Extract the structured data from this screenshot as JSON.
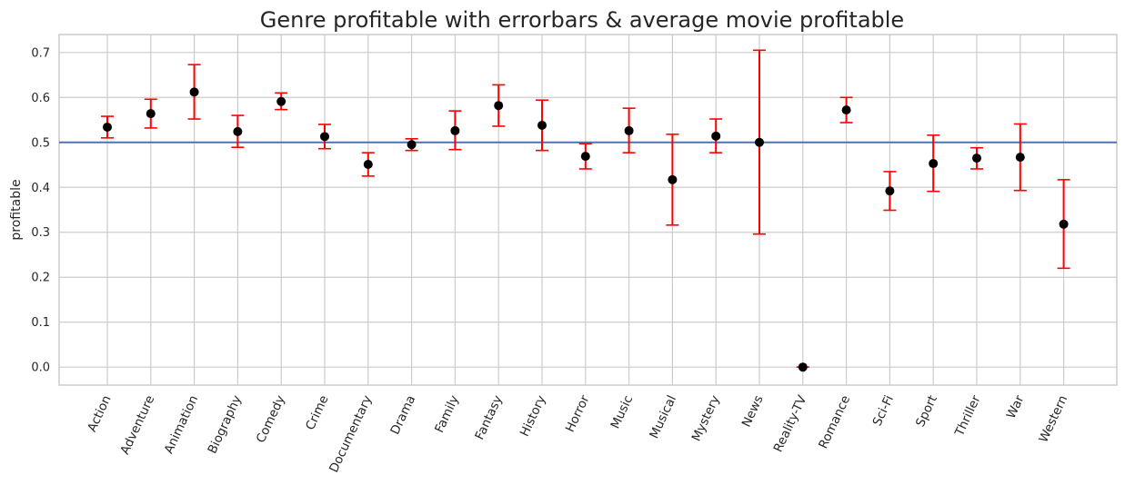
{
  "chart_data": {
    "type": "scatter",
    "title": "Genre profitable with errorbars & average movie profitable",
    "xlabel": "",
    "ylabel": "profitable",
    "ylim": [
      -0.04,
      0.74
    ],
    "yticks": [
      "0.0",
      "0.1",
      "0.2",
      "0.3",
      "0.4",
      "0.5",
      "0.6",
      "0.7"
    ],
    "grid": true,
    "reference_line": {
      "y": 0.5,
      "color": "#4C72B0"
    },
    "colors": {
      "point": "#000000",
      "errorbar": "#ff0000",
      "grid": "#cccccc",
      "axes": "#cccccc"
    },
    "categories": [
      "Action",
      "Adventure",
      "Animation",
      "Biography",
      "Comedy",
      "Crime",
      "Documentary",
      "Drama",
      "Family",
      "Fantasy",
      "History",
      "Horror",
      "Music",
      "Musical",
      "Mystery",
      "News",
      "Reality-TV",
      "Romance",
      "Sci-Fi",
      "Sport",
      "Thriller",
      "War",
      "Western"
    ],
    "values": [
      0.534,
      0.564,
      0.612,
      0.524,
      0.591,
      0.513,
      0.451,
      0.495,
      0.526,
      0.582,
      0.538,
      0.469,
      0.526,
      0.417,
      0.514,
      0.5,
      0.0,
      0.572,
      0.392,
      0.453,
      0.465,
      0.467,
      0.318
    ],
    "err_low": [
      0.51,
      0.532,
      0.552,
      0.489,
      0.573,
      0.486,
      0.425,
      0.482,
      0.484,
      0.536,
      0.482,
      0.441,
      0.477,
      0.316,
      0.477,
      0.296,
      0.0,
      0.544,
      0.349,
      0.391,
      0.441,
      0.393,
      0.22
    ],
    "err_high": [
      0.558,
      0.596,
      0.673,
      0.56,
      0.61,
      0.54,
      0.477,
      0.508,
      0.57,
      0.628,
      0.594,
      0.497,
      0.576,
      0.518,
      0.552,
      0.705,
      0.0,
      0.6,
      0.435,
      0.516,
      0.488,
      0.541,
      0.417
    ]
  }
}
